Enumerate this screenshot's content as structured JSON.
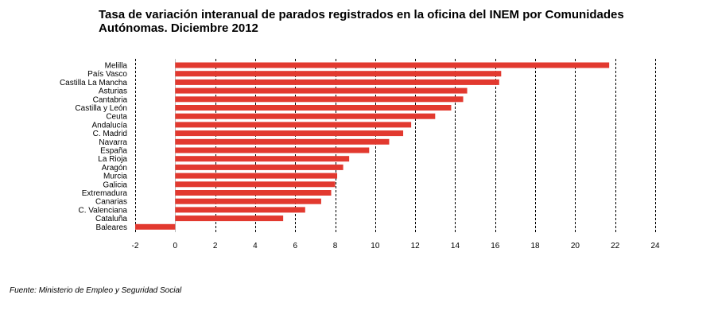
{
  "chart_data": {
    "type": "bar",
    "orientation": "horizontal",
    "title": "Tasa de variación interanual de parados registrados en la oficina del INEM por Comunidades Autónomas.  Diciembre 2012",
    "categories": [
      "Melilla",
      "País Vasco",
      "Castilla La Mancha",
      "Asturias",
      "Cantabria",
      "Castilla y León",
      "Ceuta",
      "Andalucía",
      "C. Madrid",
      "Navarra",
      "España",
      "La Rioja",
      "Aragón",
      "Murcia",
      "Galicia",
      "Extremadura",
      "Canarias",
      "C. Valenciana",
      "Cataluña",
      "Baleares"
    ],
    "values": [
      21.7,
      16.3,
      16.2,
      14.6,
      14.4,
      13.8,
      13.0,
      11.8,
      11.4,
      10.7,
      9.7,
      8.7,
      8.4,
      8.1,
      8.0,
      7.8,
      7.3,
      6.5,
      5.4,
      -2.0
    ],
    "xlim": [
      -2,
      24
    ],
    "xticks": [
      -2,
      0,
      2,
      4,
      6,
      8,
      10,
      12,
      14,
      16,
      18,
      20,
      22,
      24
    ],
    "xlabel": "",
    "ylabel": "",
    "grid": "vertical dashed",
    "bar_color": "#e2392f"
  },
  "footer": {
    "source": "Fuente: Ministerio de Empleo y Seguridad Social"
  }
}
